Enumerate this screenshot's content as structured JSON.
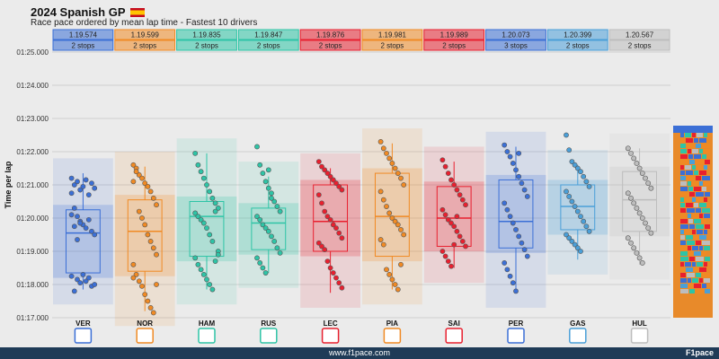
{
  "header": {
    "title": "2024 Spanish GP",
    "subtitle": "Race pace ordered by mean lap time - Fastest 10 drivers"
  },
  "footer": {
    "url": "www.f1pace.com",
    "brand": "F1pace"
  },
  "chart_data": {
    "type": "box",
    "ylabel": "Time per lap",
    "ylim_seconds": [
      77,
      85
    ],
    "yticks": [
      "01:17.000",
      "01:18.000",
      "01:19.000",
      "01:20.000",
      "01:21.000",
      "01:22.000",
      "01:23.000",
      "01:24.000",
      "01:25.000"
    ],
    "drivers": [
      {
        "code": "VER",
        "mean": "1.19.574",
        "stops": "2 stops",
        "color": "#3b6fd6",
        "logo": "red-bull-logo",
        "min": 77.85,
        "q1": 78.35,
        "median": 79.55,
        "q3": 80.25,
        "max": 81.35,
        "points": [
          80.75,
          81.0,
          81.1,
          80.85,
          80.95,
          81.15,
          80.7,
          81.05,
          80.9,
          81.2,
          80.3,
          80.05,
          79.9,
          79.8,
          79.7,
          79.95,
          79.6,
          79.5,
          80.1,
          79.75,
          79.35,
          79.85,
          78.3,
          78.1,
          78.2,
          77.95,
          78.0,
          78.25,
          77.8,
          78.15,
          78.05
        ]
      },
      {
        "code": "NOR",
        "mean": "1.19.599",
        "stops": "2 stops",
        "color": "#f08a24",
        "logo": "mclaren-logo",
        "min": 77.2,
        "q1": 78.4,
        "median": 79.6,
        "q3": 80.55,
        "max": 81.55,
        "points": [
          81.6,
          81.5,
          81.3,
          81.2,
          81.05,
          80.95,
          80.8,
          80.6,
          80.4,
          81.1,
          81.4,
          80.2,
          80.0,
          79.8,
          79.5,
          79.3,
          79.1,
          78.9,
          78.6,
          78.3,
          78.1,
          77.95,
          77.7,
          77.5,
          77.3,
          77.15,
          78.0,
          78.2
        ]
      },
      {
        "code": "HAM",
        "mean": "1.19.835",
        "stops": "2 stops",
        "color": "#2ec4a6",
        "logo": "mercedes-logo",
        "min": 77.85,
        "q1": 78.85,
        "median": 80.05,
        "q3": 80.5,
        "max": 81.95,
        "points": [
          81.95,
          81.6,
          81.4,
          81.2,
          81.0,
          80.8,
          80.6,
          80.45,
          80.3,
          80.15,
          80.05,
          79.95,
          79.85,
          79.7,
          79.5,
          79.3,
          80.2,
          79.0,
          78.8,
          78.6,
          78.45,
          78.3,
          78.15,
          78.0,
          77.85,
          78.7,
          78.9
        ]
      },
      {
        "code": "RUS",
        "mean": "1.19.847",
        "stops": "2 stops",
        "color": "#2ec4a6",
        "logo": "mercedes-logo",
        "min": 78.35,
        "q1": 79.05,
        "median": 79.85,
        "q3": 80.3,
        "max": 81.25,
        "points": [
          82.15,
          81.6,
          81.35,
          81.1,
          80.9,
          80.75,
          80.5,
          80.35,
          80.2,
          80.05,
          79.95,
          79.8,
          79.7,
          79.6,
          79.45,
          79.3,
          79.1,
          78.95,
          78.8,
          78.65,
          78.5,
          78.35,
          81.45,
          80.6
        ]
      },
      {
        "code": "LEC",
        "mean": "1.19.876",
        "stops": "2 stops",
        "color": "#e8202f",
        "logo": "ferrari-logo",
        "min": 77.75,
        "q1": 79.0,
        "median": 79.9,
        "q3": 81.0,
        "max": 81.5,
        "points": [
          81.7,
          81.55,
          81.45,
          81.35,
          81.25,
          81.15,
          81.05,
          80.95,
          80.85,
          80.7,
          80.45,
          80.2,
          80.05,
          79.95,
          79.8,
          79.7,
          79.55,
          79.4,
          79.25,
          79.15,
          79.05,
          78.7,
          78.5,
          78.35,
          78.2,
          78.05,
          77.9
        ]
      },
      {
        "code": "PIA",
        "mean": "1.19.981",
        "stops": "2 stops",
        "color": "#f08a24",
        "logo": "mclaren-logo",
        "min": 77.85,
        "q1": 78.85,
        "median": 80.05,
        "q3": 81.35,
        "max": 82.25,
        "points": [
          82.3,
          82.1,
          81.95,
          81.8,
          81.65,
          81.5,
          81.35,
          81.2,
          81.0,
          80.8,
          80.55,
          80.35,
          80.15,
          80.0,
          79.9,
          79.8,
          79.65,
          79.5,
          79.35,
          79.2,
          78.45,
          78.3,
          78.15,
          78.0,
          77.85,
          78.6
        ]
      },
      {
        "code": "SAI",
        "mean": "1.19.989",
        "stops": "2 stops",
        "color": "#e8202f",
        "logo": "ferrari-logo",
        "min": 78.5,
        "q1": 79.15,
        "median": 80.0,
        "q3": 80.95,
        "max": 81.7,
        "points": [
          81.75,
          81.55,
          81.35,
          81.15,
          81.0,
          80.85,
          80.7,
          80.55,
          80.4,
          80.25,
          80.1,
          79.95,
          79.85,
          79.75,
          79.6,
          79.45,
          79.3,
          79.15,
          79.0,
          78.85,
          78.7,
          78.55,
          79.2,
          80.05
        ]
      },
      {
        "code": "PER",
        "mean": "1.20.073",
        "stops": "3 stops",
        "color": "#3b6fd6",
        "logo": "red-bull-logo",
        "min": 77.75,
        "q1": 79.1,
        "median": 79.9,
        "q3": 81.15,
        "max": 82.15,
        "points": [
          82.2,
          82.0,
          81.85,
          81.65,
          81.45,
          81.25,
          81.05,
          80.85,
          80.65,
          80.45,
          80.25,
          80.05,
          79.85,
          79.65,
          79.45,
          79.25,
          79.05,
          78.85,
          78.65,
          78.45,
          78.25,
          78.05,
          77.8,
          81.95
        ]
      },
      {
        "code": "GAS",
        "mean": "1.20.399",
        "stops": "2 stops",
        "color": "#4a9fd8",
        "logo": "alpine-logo",
        "min": 78.75,
        "q1": 79.65,
        "median": 80.35,
        "q3": 81.0,
        "max": 81.6,
        "points": [
          82.5,
          82.05,
          81.7,
          81.6,
          81.5,
          81.4,
          81.25,
          81.1,
          80.95,
          80.8,
          80.65,
          80.5,
          80.35,
          80.2,
          80.05,
          79.9,
          79.75,
          79.6,
          79.5,
          79.4,
          79.3,
          79.2,
          79.1,
          79.0
        ]
      },
      {
        "code": "HUL",
        "mean": "1.20.567",
        "stops": "2 stops",
        "color": "#bdbdbd",
        "logo": "haas-logo",
        "min": 78.6,
        "q1": 79.6,
        "median": 80.55,
        "q3": 81.4,
        "max": 82.1,
        "points": [
          82.1,
          81.95,
          81.8,
          81.65,
          81.5,
          81.35,
          81.2,
          81.05,
          80.9,
          80.75,
          80.6,
          80.45,
          80.3,
          80.15,
          80.0,
          79.85,
          79.7,
          79.55,
          79.4,
          79.25,
          79.1,
          78.95,
          78.8,
          78.65
        ]
      }
    ]
  }
}
